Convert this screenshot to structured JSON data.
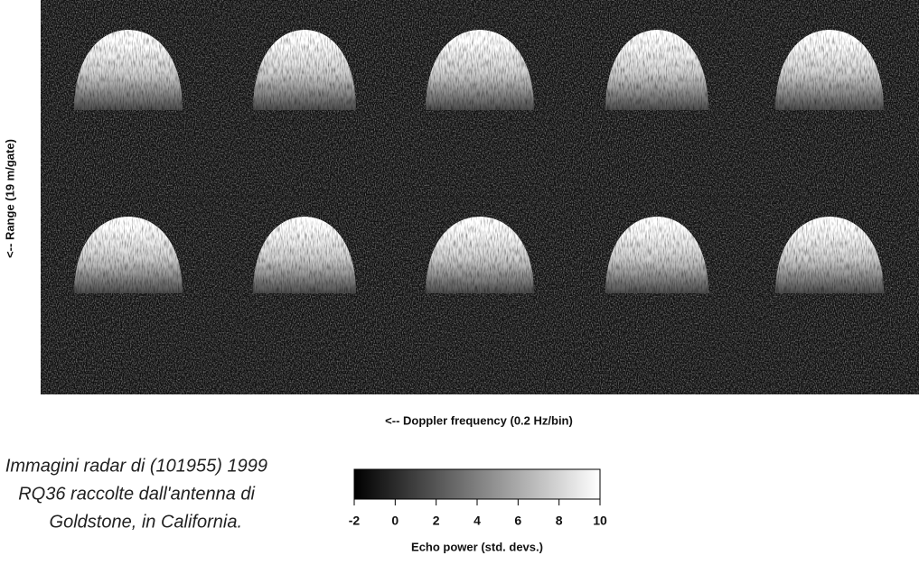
{
  "figure": {
    "x_label": "<-- Doppler frequency (0.2 Hz/bin)",
    "y_label": "<-- Range (19 m/gate)"
  },
  "caption": {
    "lines": [
      "Immagini radar di (101955) 1999",
      "RQ36 raccolte dall'antenna di",
      "Goldstone, in California."
    ]
  },
  "colorbar": {
    "label": "Echo power (std. devs.)",
    "lim": [
      -2,
      10
    ],
    "ticks": [
      -2,
      0,
      2,
      4,
      6,
      8,
      10
    ]
  }
}
